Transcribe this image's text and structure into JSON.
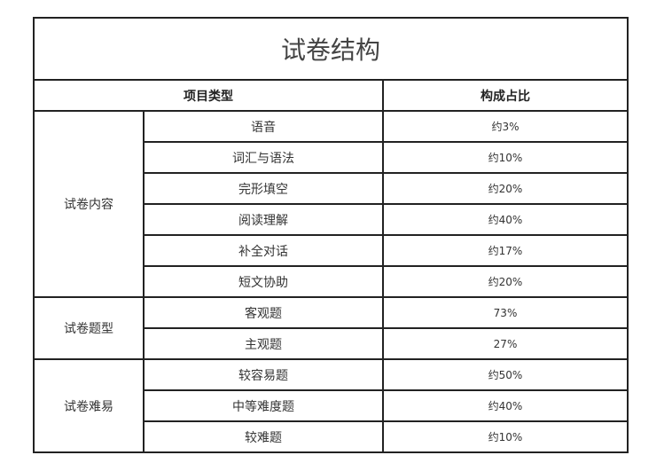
{
  "title": "试卷结构",
  "headers": {
    "type": "项目类型",
    "ratio": "构成占比"
  },
  "groups": [
    {
      "name": "试卷内容",
      "rows": [
        {
          "item": "语音",
          "ratio": "约3%"
        },
        {
          "item": "词汇与语法",
          "ratio": "约10%"
        },
        {
          "item": "完形填空",
          "ratio": "约20%"
        },
        {
          "item": "阅读理解",
          "ratio": "约40%"
        },
        {
          "item": "补全对话",
          "ratio": "约17%"
        },
        {
          "item": "短文协助",
          "ratio": "约20%"
        }
      ]
    },
    {
      "name": "试卷题型",
      "rows": [
        {
          "item": "客观题",
          "ratio": "73%"
        },
        {
          "item": "主观题",
          "ratio": "27%"
        }
      ]
    },
    {
      "name": "试卷难易",
      "rows": [
        {
          "item": "较容易题",
          "ratio": "约50%"
        },
        {
          "item": "中等难度题",
          "ratio": "约40%"
        },
        {
          "item": "较难题",
          "ratio": "约10%"
        }
      ]
    }
  ]
}
